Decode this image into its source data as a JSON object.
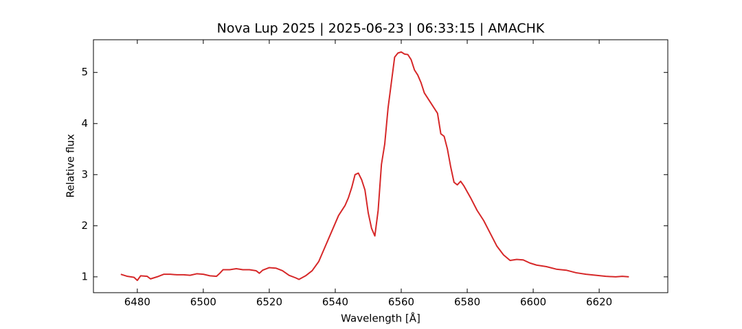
{
  "chart_data": {
    "type": "line",
    "title": "Nova Lup 2025 | 2025-06-23 | 06:33:15 | AMACHK",
    "x_label": "Wavelength [Å]",
    "y_label": "Relative flux",
    "x": [
      6475,
      6477,
      6479,
      6480,
      6481,
      6483,
      6484,
      6486,
      6488,
      6490,
      6492,
      6494,
      6496,
      6498,
      6500,
      6502,
      6504,
      6505,
      6506,
      6508,
      6510,
      6512,
      6514,
      6516,
      6517,
      6518,
      6520,
      6522,
      6524,
      6526,
      6528,
      6529,
      6531,
      6533,
      6535,
      6537,
      6539,
      6541,
      6543,
      6544,
      6545,
      6546,
      6547,
      6548,
      6549,
      6550,
      6551,
      6552,
      6553,
      6554,
      6555,
      6556,
      6557,
      6558,
      6559,
      6560,
      6561,
      6562,
      6563,
      6564,
      6565,
      6566,
      6567,
      6569,
      6571,
      6572,
      6573,
      6574,
      6575,
      6576,
      6577,
      6578,
      6579,
      6581,
      6583,
      6585,
      6587,
      6589,
      6591,
      6593,
      6595,
      6597,
      6599,
      6601,
      6604,
      6607,
      6610,
      6613,
      6616,
      6619,
      6622,
      6625,
      6627,
      6629
    ],
    "series": [
      {
        "color": "#d62728",
        "values": [
          1.05,
          1.01,
          0.99,
          0.93,
          1.02,
          1.01,
          0.96,
          1.0,
          1.05,
          1.05,
          1.04,
          1.04,
          1.03,
          1.06,
          1.05,
          1.02,
          1.01,
          1.07,
          1.14,
          1.14,
          1.16,
          1.14,
          1.14,
          1.12,
          1.07,
          1.13,
          1.18,
          1.17,
          1.12,
          1.03,
          0.98,
          0.95,
          1.02,
          1.12,
          1.3,
          1.6,
          1.9,
          2.2,
          2.4,
          2.55,
          2.75,
          3.0,
          3.03,
          2.9,
          2.7,
          2.25,
          1.95,
          1.8,
          2.3,
          3.2,
          3.6,
          4.3,
          4.8,
          5.3,
          5.38,
          5.4,
          5.36,
          5.35,
          5.25,
          5.05,
          4.95,
          4.8,
          4.6,
          4.4,
          4.2,
          3.8,
          3.75,
          3.5,
          3.15,
          2.85,
          2.8,
          2.87,
          2.78,
          2.55,
          2.3,
          2.1,
          1.85,
          1.6,
          1.43,
          1.32,
          1.34,
          1.33,
          1.27,
          1.23,
          1.2,
          1.15,
          1.13,
          1.08,
          1.05,
          1.03,
          1.01,
          1.0,
          1.01,
          1.0
        ]
      }
    ],
    "xlim": [
      6466.7,
      6640.8
    ],
    "ylim": [
      0.69,
      5.64
    ],
    "xticks": [
      6480,
      6500,
      6520,
      6540,
      6560,
      6580,
      6600,
      6620
    ],
    "yticks": [
      1,
      2,
      3,
      4,
      5
    ]
  }
}
